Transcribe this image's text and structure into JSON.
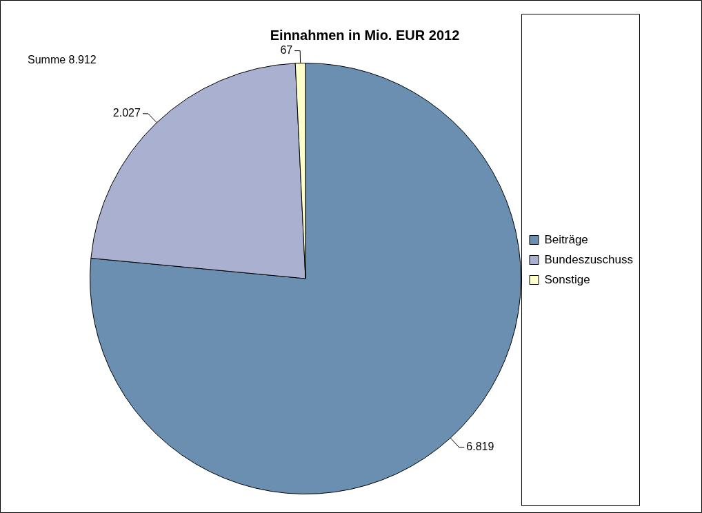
{
  "chart_data": {
    "type": "pie",
    "title": "Einnahmen in Mio. EUR 2012",
    "categories": [
      "Beiträge",
      "Bundeszuschuss",
      "Sonstige"
    ],
    "values": [
      6819,
      2027,
      67
    ],
    "colors": [
      "#6a8fb0",
      "#aab0cf",
      "#ffffcc"
    ],
    "value_labels": [
      "6.819",
      "2.027",
      "67"
    ],
    "annotations": [
      "Summe 8.912"
    ],
    "legend": "right"
  }
}
